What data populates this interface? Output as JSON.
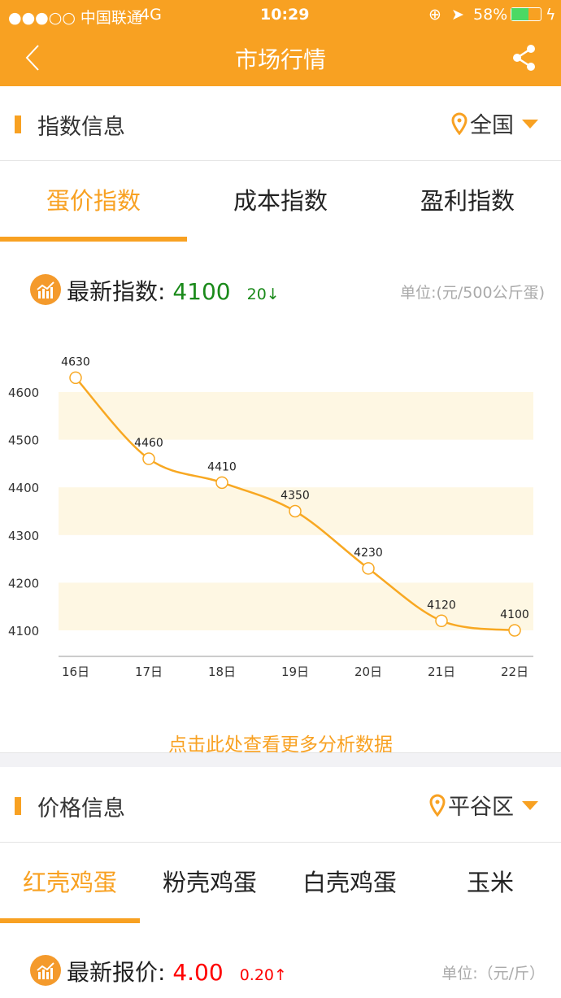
{
  "status": {
    "carrier": "●●●○○ 中国联通",
    "network": "4G",
    "time": "10:29",
    "battery": "58%",
    "battery_level": 58
  },
  "nav": {
    "title": "市场行情",
    "back_icon": "chevron-left-icon",
    "share_icon": "share-icon"
  },
  "index_section": {
    "title": "指数信息",
    "location": "全国",
    "tabs": [
      {
        "label": "蛋价指数",
        "active": true
      },
      {
        "label": "成本指数"
      },
      {
        "label": "盈利指数"
      }
    ],
    "latest_label": "最新指数:",
    "latest_value": "4100",
    "change": "20↓",
    "unit": "单位:(元/500公斤蛋)",
    "more_link": "点击此处查看更多分析数据"
  },
  "chart_data": {
    "type": "line",
    "categories": [
      "16日",
      "17日",
      "18日",
      "19日",
      "20日",
      "21日",
      "22日"
    ],
    "values": [
      4630,
      4460,
      4410,
      4350,
      4230,
      4120,
      4100
    ],
    "yticks": [
      4100,
      4200,
      4300,
      4400,
      4500,
      4600
    ],
    "ylim": [
      4050,
      4680
    ],
    "smooth": true,
    "color": "#f8a822",
    "band_color": "#fef7e3"
  },
  "price_section": {
    "title": "价格信息",
    "location": "平谷区",
    "tabs": [
      {
        "label": "红壳鸡蛋",
        "active": true
      },
      {
        "label": "粉壳鸡蛋"
      },
      {
        "label": "白壳鸡蛋"
      },
      {
        "label": "玉米"
      }
    ],
    "latest_label": "最新报价:",
    "latest_value": "4.00",
    "change": "0.20↑",
    "unit": "单位:（元/斤）"
  },
  "colors": {
    "accent": "#f8a122",
    "down": "#1a8a1a",
    "up": "#ff0000"
  }
}
